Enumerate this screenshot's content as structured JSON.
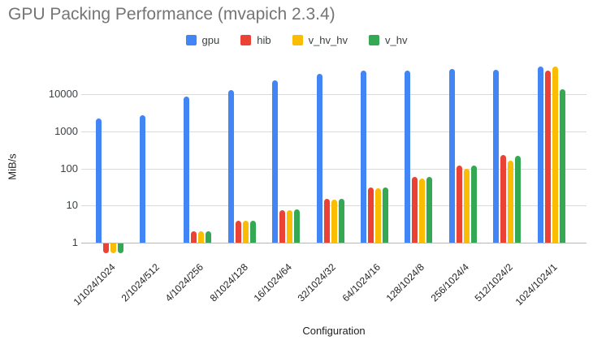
{
  "chart_data": {
    "type": "bar",
    "title": "GPU Packing Performance (mvapich 2.3.4)",
    "xlabel": "Configuration",
    "ylabel": "MiB/s",
    "y_scale": "log",
    "y_ticks": [
      1,
      10,
      100,
      1000,
      10000
    ],
    "ylim": [
      0.45,
      63000
    ],
    "grid": true,
    "legend_position": "top",
    "categories": [
      "1/1024/1024",
      "2/1024/512",
      "4/1024/256",
      "8/1024/128",
      "16/1024/64",
      "32/1024/32",
      "64/1024/16",
      "128/1024/8",
      "256/1024/4",
      "512/1024/2",
      "1024/1024/1"
    ],
    "series": [
      {
        "name": "gpu",
        "color": "#4285F4",
        "values": [
          2200,
          2700,
          8500,
          13000,
          24000,
          35000,
          42000,
          44000,
          48000,
          45000,
          54000
        ]
      },
      {
        "name": "hib",
        "color": "#EA4335",
        "values": [
          0.55,
          null,
          2.0,
          3.8,
          7.5,
          15.0,
          30,
          59,
          120,
          230,
          43000
        ]
      },
      {
        "name": "v_hv_hv",
        "color": "#FBBC04",
        "values": [
          0.55,
          null,
          2.0,
          3.8,
          7.5,
          14.5,
          29,
          52,
          100,
          165,
          54000
        ]
      },
      {
        "name": "v_hv",
        "color": "#34A853",
        "values": [
          0.55,
          null,
          2.0,
          3.9,
          7.8,
          15.5,
          31,
          59,
          120,
          220,
          13500
        ]
      }
    ]
  }
}
